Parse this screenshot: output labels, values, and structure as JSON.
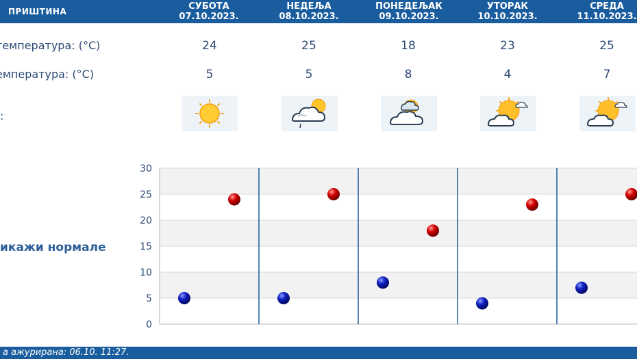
{
  "header": {
    "city": "ПРИШТИНА"
  },
  "days": [
    {
      "day": "СУБОТА",
      "date": "07.10.2023.",
      "max": "24",
      "min": "5",
      "icon": "sunny-icon"
    },
    {
      "day": "НЕДЕЉА",
      "date": "08.10.2023.",
      "max": "25",
      "min": "5",
      "icon": "rain-cloud-sun-icon"
    },
    {
      "day": "ПОНЕДЕЉАК",
      "date": "09.10.2023.",
      "max": "18",
      "min": "8",
      "icon": "cloudy-sun-icon"
    },
    {
      "day": "УТОРАК",
      "date": "10.10.2023.",
      "max": "23",
      "min": "4",
      "icon": "partly-cloudy-icon"
    },
    {
      "day": "СРЕДА",
      "date": "11.10.2023.",
      "max": "25",
      "min": "7",
      "icon": "partly-cloudy-icon"
    }
  ],
  "labels": {
    "max_temp": "температура: (°C)",
    "min_temp": "емпература: (°C)",
    "weather": ":"
  },
  "toggle_normals": "икажи нормале",
  "footer": {
    "updated": "а ажурирана:  06.10. 11:27."
  },
  "colors": {
    "header_bg": "#1a5d9e",
    "max_marker": "#cc0000",
    "min_marker": "#0a1fb0"
  },
  "chart_data": {
    "type": "scatter",
    "categories": [
      "07.10.2023.",
      "08.10.2023.",
      "09.10.2023.",
      "10.10.2023.",
      "11.10.2023."
    ],
    "series": [
      {
        "values": [
          5,
          5,
          8,
          4,
          7
        ]
      },
      {
        "values": [
          24,
          25,
          18,
          23,
          25
        ]
      }
    ],
    "ylim": [
      0,
      30
    ],
    "yticks": [
      "0",
      "5",
      "10",
      "15",
      "20",
      "25",
      "30"
    ],
    "grid": true
  }
}
